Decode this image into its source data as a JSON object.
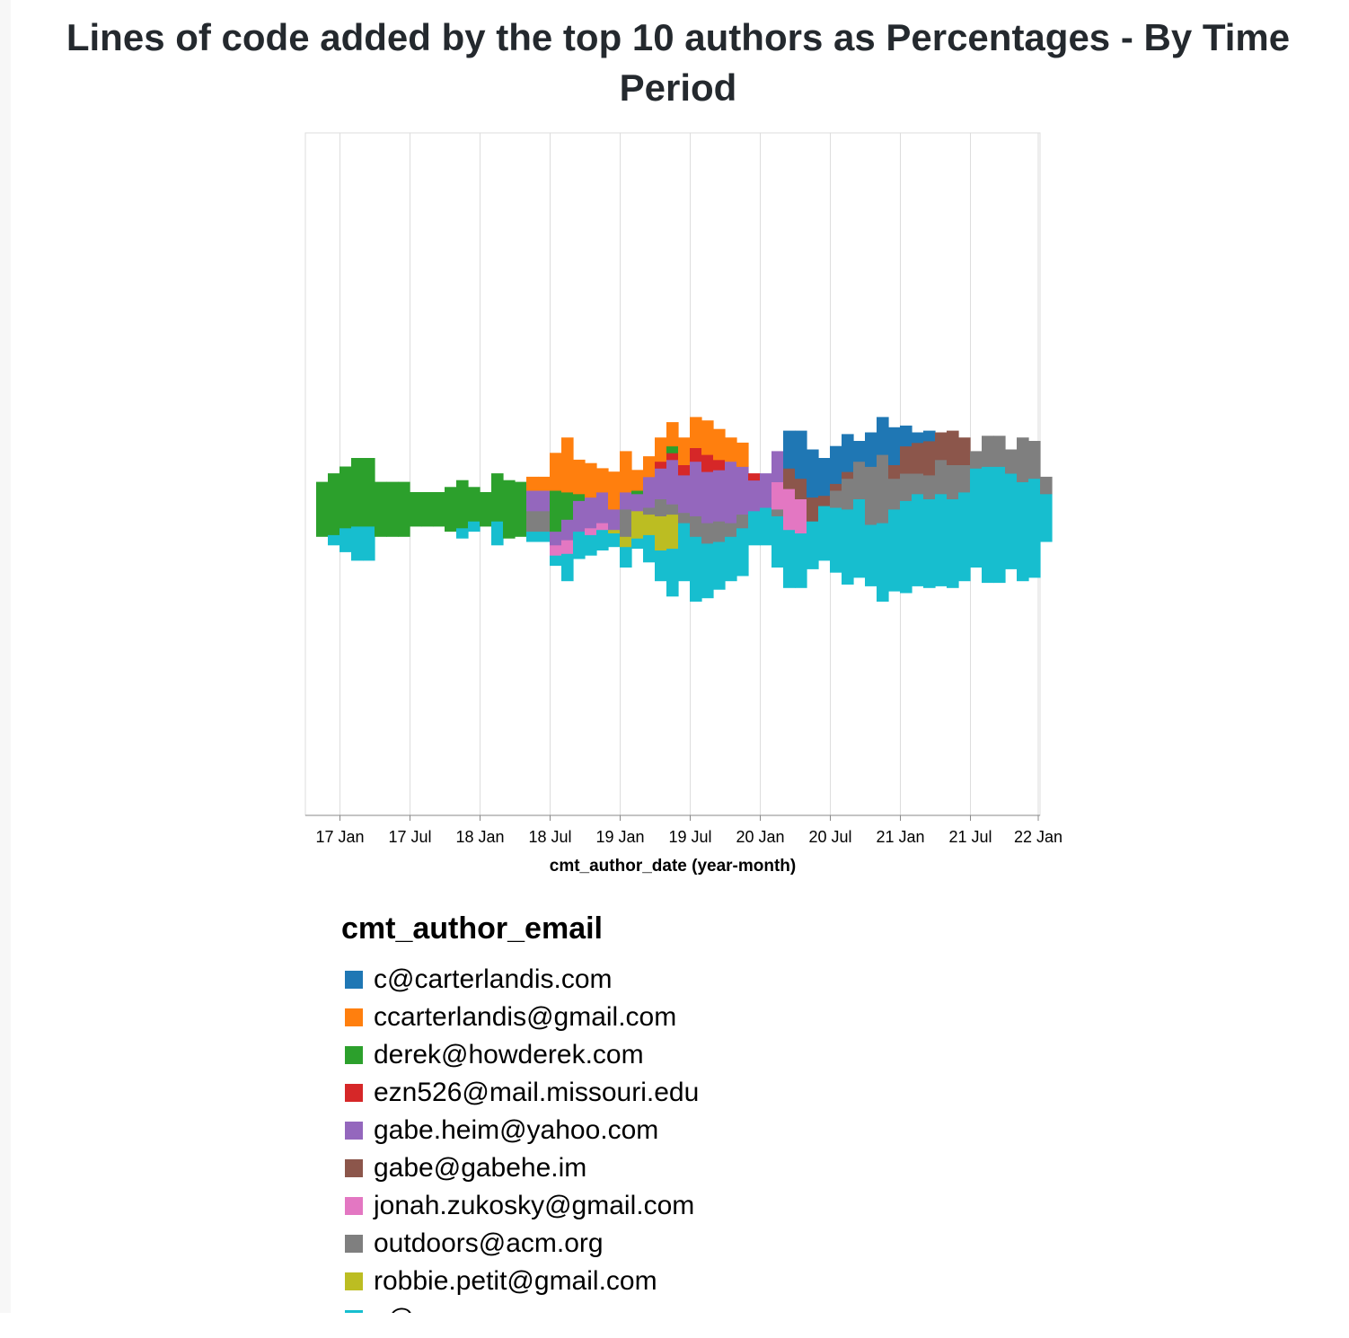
{
  "title": "Lines of code added by the top 10 authors as Percentages - By Time Period",
  "legend": {
    "title": "cmt_author_email",
    "items": [
      {
        "label": "c@carterlandis.com",
        "color": "#1f77b4"
      },
      {
        "label": "ccarterlandis@gmail.com",
        "color": "#ff7f0e"
      },
      {
        "label": "derek@howderek.com",
        "color": "#2ca02c"
      },
      {
        "label": "ezn526@mail.missouri.edu",
        "color": "#d62728"
      },
      {
        "label": "gabe.heim@yahoo.com",
        "color": "#9467bd"
      },
      {
        "label": "gabe@gabehe.im",
        "color": "#8c564b"
      },
      {
        "label": "jonah.zukosky@gmail.com",
        "color": "#e377c2"
      },
      {
        "label": "outdoors@acm.org",
        "color": "#7f7f7f"
      },
      {
        "label": "robbie.petit@gmail.com",
        "color": "#bcbd22"
      },
      {
        "label": "s@",
        "color": "#17becf"
      }
    ]
  },
  "chart_data": {
    "type": "area",
    "subtype": "streamgraph (stacked, centered, normalized percentages, step interpolation)",
    "title": "Lines of code added by the top 10 authors as Percentages - By Time Period",
    "xlabel": "cmt_author_date (year-month)",
    "ylabel": "",
    "x_ticks": [
      "17 Jan",
      "17 Jul",
      "18 Jan",
      "18 Jul",
      "19 Jan",
      "19 Jul",
      "20 Jan",
      "20 Jul",
      "21 Jan",
      "21 Jul",
      "22 Jan"
    ],
    "x_start": "2016-11",
    "x": [
      "2016-11",
      "2016-12",
      "2017-01",
      "2017-02",
      "2017-03",
      "2017-04",
      "2017-05",
      "2017-06",
      "2017-07",
      "2017-08",
      "2017-09",
      "2017-10",
      "2017-11",
      "2017-12",
      "2018-01",
      "2018-02",
      "2018-03",
      "2018-04",
      "2018-05",
      "2018-06",
      "2018-07",
      "2018-08",
      "2018-09",
      "2018-10",
      "2018-11",
      "2018-12",
      "2019-01",
      "2019-02",
      "2019-03",
      "2019-04",
      "2019-05",
      "2019-06",
      "2019-07",
      "2019-08",
      "2019-09",
      "2019-10",
      "2019-11",
      "2019-12",
      "2020-01",
      "2020-02",
      "2020-03",
      "2020-04",
      "2020-05",
      "2020-06",
      "2020-07",
      "2020-08",
      "2020-09",
      "2020-10",
      "2020-11",
      "2020-12",
      "2021-01",
      "2021-02",
      "2021-03",
      "2021-04",
      "2021-05",
      "2021-06",
      "2021-07",
      "2021-08",
      "2021-09",
      "2021-10",
      "2021-11",
      "2021-12",
      "2022-01"
    ],
    "grid": true,
    "legend_position": "bottom",
    "series": [
      {
        "name": "s@",
        "values": [
          0,
          3,
          7,
          10,
          10,
          0,
          0,
          0,
          0,
          0,
          0,
          0,
          3,
          3,
          0,
          7,
          0,
          0,
          3,
          3,
          3,
          8,
          8,
          6,
          6,
          4,
          6,
          3,
          8,
          9,
          14,
          17,
          19,
          16,
          14,
          13,
          14,
          10,
          11,
          15,
          17,
          16,
          14,
          16,
          19,
          22,
          23,
          18,
          23,
          24,
          27,
          27,
          26,
          27,
          26,
          26,
          29,
          34,
          34,
          28,
          29,
          29,
          14
        ]
      },
      {
        "name": "robbie.petit@gmail.com",
        "values": [
          0,
          0,
          0,
          0,
          0,
          0,
          0,
          0,
          0,
          0,
          0,
          0,
          0,
          0,
          0,
          0,
          0,
          0,
          0,
          0,
          0,
          0,
          0,
          0,
          0,
          1,
          3,
          8,
          6,
          10,
          10,
          0,
          0,
          0,
          0,
          0,
          0,
          0,
          0,
          0,
          0,
          0,
          0,
          0,
          0,
          0,
          0,
          0,
          0,
          0,
          0,
          0,
          0,
          0,
          0,
          0,
          0,
          0,
          0,
          0,
          0,
          0,
          0
        ]
      },
      {
        "name": "outdoors@acm.org",
        "values": [
          0,
          0,
          0,
          0,
          0,
          0,
          0,
          0,
          0,
          0,
          0,
          0,
          0,
          0,
          0,
          0,
          0,
          0,
          6,
          6,
          0,
          0,
          0,
          0,
          0,
          0,
          8,
          0,
          2,
          5,
          3,
          3,
          6,
          6,
          6,
          4,
          4,
          0,
          0,
          2,
          0,
          0,
          0,
          0,
          5,
          9,
          11,
          17,
          20,
          9,
          8,
          6,
          7,
          10,
          10,
          8,
          5,
          9,
          9,
          7,
          13,
          11,
          5
        ]
      },
      {
        "name": "jonah.zukosky@gmail.com",
        "values": [
          0,
          0,
          0,
          0,
          0,
          0,
          0,
          0,
          0,
          0,
          0,
          0,
          0,
          0,
          0,
          0,
          0,
          0,
          0,
          0,
          3,
          4,
          0,
          2,
          2,
          0,
          0,
          0,
          0,
          0,
          0,
          0,
          0,
          0,
          0,
          0,
          0,
          0,
          0,
          8,
          12,
          10,
          0,
          0,
          0,
          0,
          0,
          0,
          0,
          0,
          0,
          0,
          0,
          0,
          0,
          0,
          0,
          0,
          0,
          0,
          0,
          0,
          0
        ]
      },
      {
        "name": "gabe@gabehe.im",
        "values": [
          0,
          0,
          0,
          0,
          0,
          0,
          0,
          0,
          0,
          0,
          0,
          0,
          0,
          0,
          0,
          0,
          0,
          0,
          0,
          0,
          0,
          0,
          0,
          0,
          0,
          0,
          0,
          0,
          0,
          0,
          0,
          0,
          0,
          0,
          0,
          0,
          0,
          0,
          0,
          0,
          6,
          6,
          7,
          3,
          2,
          2,
          0,
          0,
          0,
          4,
          8,
          9,
          10,
          8,
          10,
          8,
          0,
          0,
          0,
          0,
          0,
          0,
          0
        ]
      },
      {
        "name": "gabe.heim@yahoo.com",
        "values": [
          0,
          0,
          0,
          0,
          0,
          0,
          0,
          0,
          0,
          0,
          0,
          0,
          0,
          0,
          0,
          0,
          0,
          0,
          6,
          6,
          4,
          6,
          9,
          9,
          9,
          6,
          5,
          5,
          9,
          9,
          13,
          11,
          16,
          15,
          15,
          18,
          14,
          9,
          10,
          9,
          0,
          0,
          0,
          0,
          0,
          0,
          0,
          0,
          0,
          0,
          0,
          0,
          0,
          0,
          0,
          0,
          0,
          0,
          0,
          0,
          0,
          0,
          0
        ]
      },
      {
        "name": "ezn526@mail.missouri.edu",
        "values": [
          0,
          0,
          0,
          0,
          0,
          0,
          0,
          0,
          0,
          0,
          0,
          0,
          0,
          0,
          0,
          0,
          0,
          0,
          0,
          0,
          0,
          0,
          0,
          0,
          0,
          0,
          0,
          0,
          0,
          2,
          2,
          3,
          4,
          5,
          3,
          0,
          0,
          2,
          0,
          0,
          0,
          0,
          0,
          0,
          0,
          0,
          0,
          0,
          0,
          0,
          0,
          0,
          0,
          0,
          0,
          0,
          0,
          0,
          0,
          0,
          0,
          0,
          0
        ]
      },
      {
        "name": "derek@howderek.com",
        "values": [
          16,
          18,
          18,
          20,
          20,
          16,
          16,
          16,
          10,
          10,
          10,
          13,
          14,
          10,
          10,
          14,
          17,
          16,
          0,
          0,
          12,
          8,
          2,
          0,
          0,
          0,
          0,
          1,
          0,
          0,
          2,
          0,
          0,
          0,
          0,
          0,
          0,
          0,
          0,
          0,
          0,
          0,
          0,
          0,
          0,
          0,
          0,
          0,
          0,
          0,
          0,
          0,
          0,
          0,
          0,
          0,
          0,
          0,
          0,
          0,
          0,
          0,
          0
        ]
      },
      {
        "name": "ccarterlandis@gmail.com",
        "values": [
          0,
          0,
          0,
          0,
          0,
          0,
          0,
          0,
          0,
          0,
          0,
          0,
          0,
          0,
          0,
          0,
          0,
          0,
          4,
          4,
          11,
          16,
          10,
          10,
          7,
          11,
          12,
          6,
          6,
          7,
          7,
          8,
          9,
          10,
          9,
          7,
          7,
          0,
          0,
          0,
          0,
          0,
          0,
          0,
          0,
          0,
          0,
          0,
          0,
          0,
          0,
          0,
          0,
          0,
          0,
          0,
          0,
          0,
          0,
          0,
          0,
          0,
          0
        ]
      },
      {
        "name": "c@carterlandis.com",
        "values": [
          0,
          0,
          0,
          0,
          0,
          0,
          0,
          0,
          0,
          0,
          0,
          0,
          0,
          0,
          0,
          0,
          0,
          0,
          0,
          0,
          0,
          0,
          0,
          0,
          0,
          0,
          0,
          0,
          0,
          0,
          0,
          0,
          0,
          0,
          0,
          0,
          0,
          0,
          0,
          0,
          11,
          14,
          14,
          11,
          11,
          11,
          6,
          10,
          11,
          11,
          6,
          3,
          3,
          0,
          0,
          0,
          0,
          0,
          0,
          0,
          0,
          0,
          0
        ]
      }
    ]
  }
}
